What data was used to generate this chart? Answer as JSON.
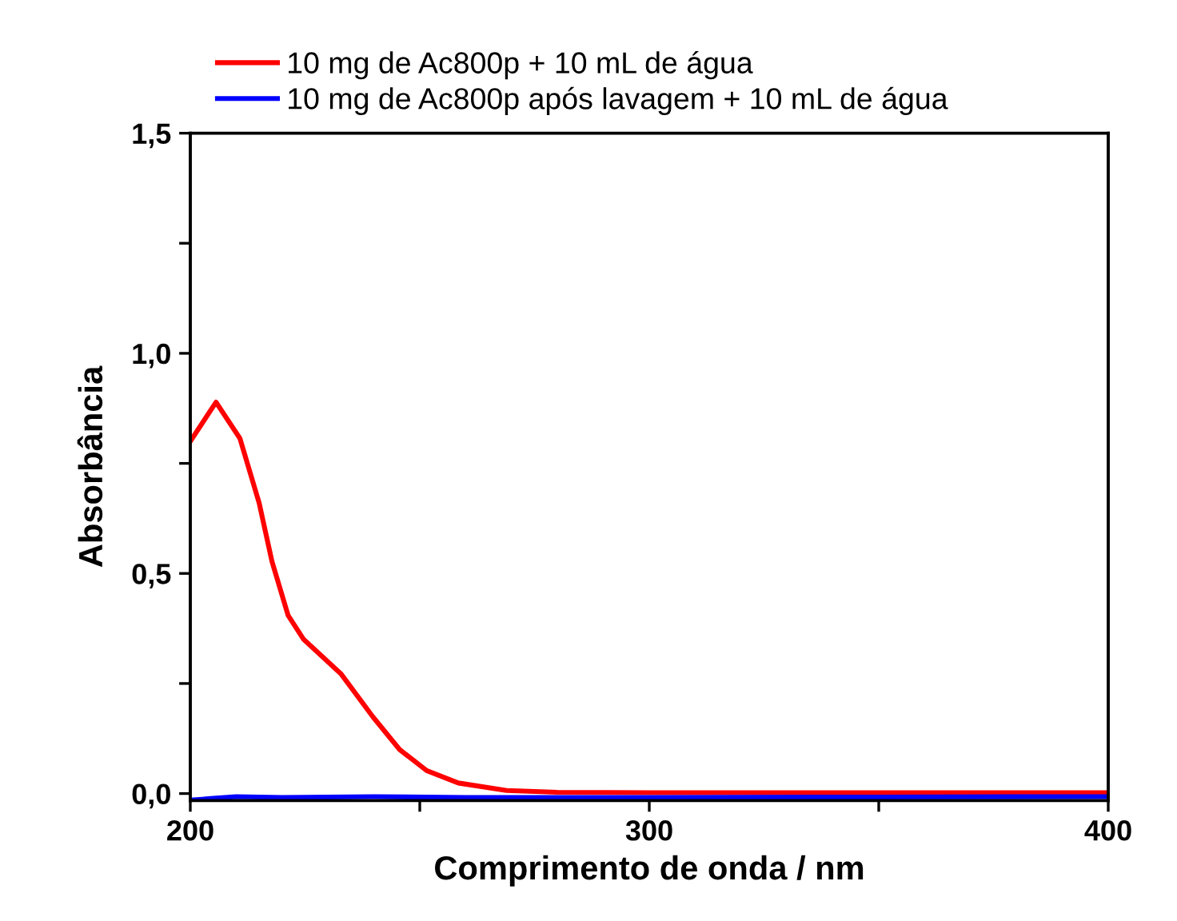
{
  "chart_data": {
    "type": "line",
    "xlabel": "Comprimento de onda / nm",
    "ylabel": "Absorbância",
    "xlim": [
      200,
      400
    ],
    "xticks": [
      200,
      {
        "value": 250,
        "label": null
      },
      300,
      {
        "value": 350,
        "label": null
      },
      400
    ],
    "ylim": [
      -0.016,
      1.5
    ],
    "yticks": [
      {
        "value": 0,
        "label": "0,0"
      },
      {
        "value": 0.25,
        "label": null
      },
      {
        "value": 0.5,
        "label": "0,5"
      },
      {
        "value": 0.75,
        "label": null
      },
      {
        "value": 1.0,
        "label": "1,0"
      },
      {
        "value": 1.25,
        "label": null
      },
      {
        "value": 1.5,
        "label": "1,5"
      }
    ],
    "grid": false,
    "legend": "top",
    "marker": "none",
    "line_style": "solid",
    "series": [
      {
        "name": "10 mg de Ac800p + 10 mL de água",
        "color": "#ff0000",
        "x": [
          200,
          205.6,
          210.8,
          215,
          217.8,
          221.3,
          224.7,
          232.9,
          239.8,
          245.6,
          251.5,
          258.4,
          268.9,
          280,
          300,
          320,
          340,
          360,
          380,
          400
        ],
        "values": [
          0.8,
          0.889,
          0.807,
          0.66,
          0.527,
          0.405,
          0.35,
          0.271,
          0.174,
          0.1,
          0.052,
          0.024,
          0.007,
          0.003,
          0.002,
          0.002,
          0.002,
          0.002,
          0.002,
          0.002
        ]
      },
      {
        "name": "10 mg de Ac800p após lavagem + 10 mL de água",
        "color": "#0000ff",
        "x": [
          200,
          205,
          210,
          220,
          240,
          260,
          300,
          350,
          400
        ],
        "values": [
          -0.015,
          -0.011,
          -0.007,
          -0.009,
          -0.007,
          -0.009,
          -0.009,
          -0.008,
          -0.007
        ]
      }
    ]
  }
}
